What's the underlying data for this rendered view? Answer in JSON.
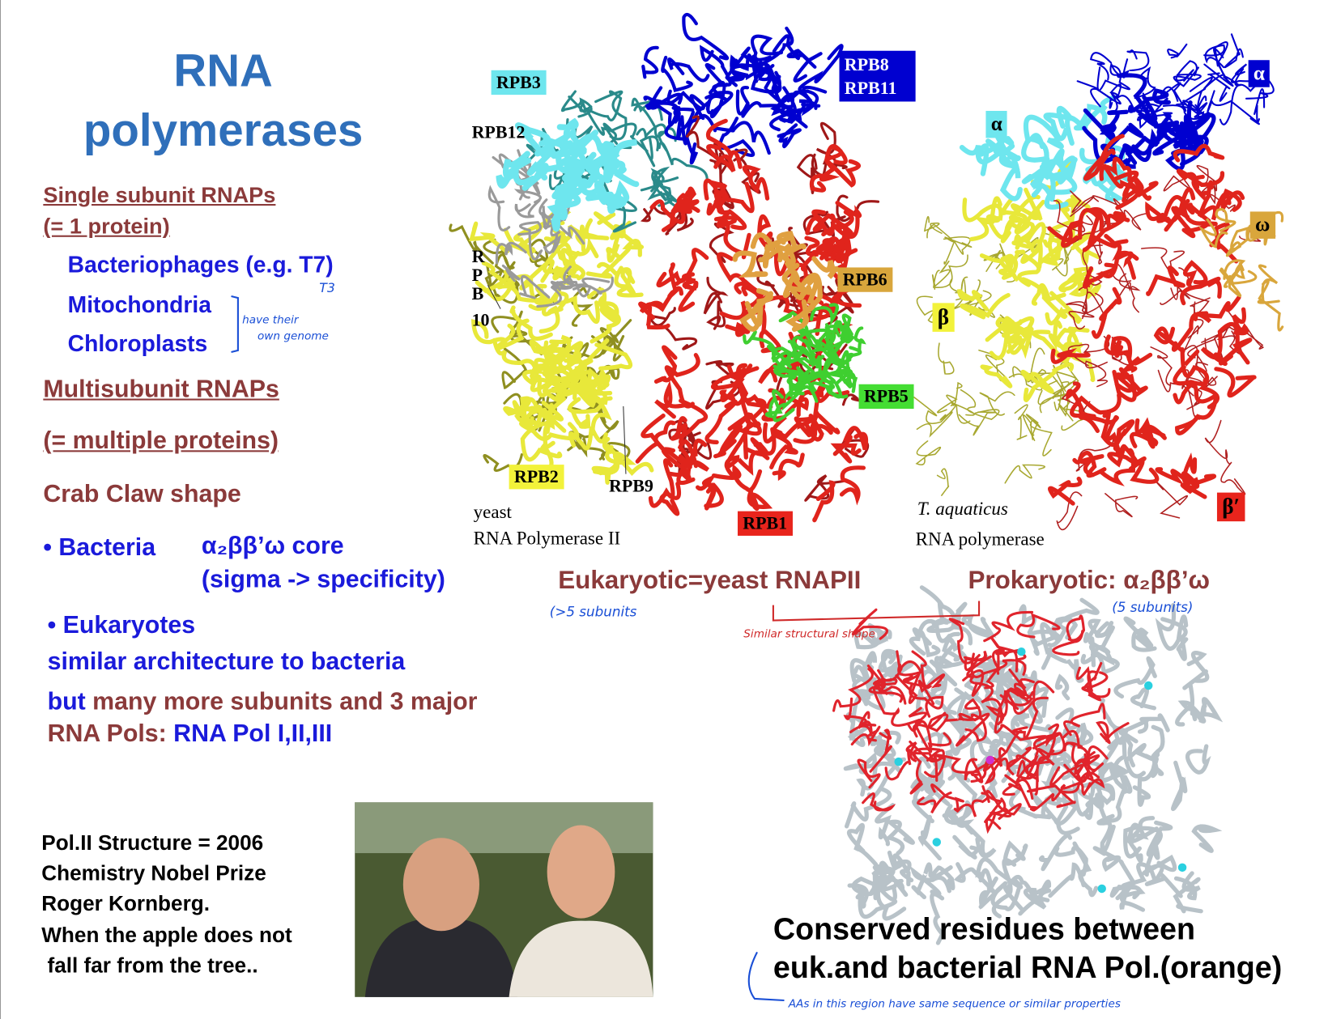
{
  "title": [
    "RNA",
    "polymerases"
  ],
  "left": {
    "single_heading": [
      "Single subunit RNAPs",
      "(= 1 protein)"
    ],
    "single_items": [
      "Bacteriophages (e.g. T7)",
      "Mitochondria",
      "Chloroplasts"
    ],
    "multi_heading": [
      "Multisubunit RNAPs",
      "(= multiple proteins)"
    ],
    "shape": "Crab Claw shape",
    "bacteria": {
      "bullet": "• Bacteria",
      "core": "α₂ββ’ω core",
      "note": "(sigma -> specificity)"
    },
    "eukaryotes": {
      "bullet": "• Eukaryotes",
      "line1": "similar architecture to bacteria",
      "line2": [
        "but",
        " many more subunits and 3 major"
      ],
      "line3": [
        "RNA Pols:",
        " RNA Pol I,II,III"
      ]
    }
  },
  "handwritten": {
    "t3": "T3",
    "genome": [
      "have their",
      "own genome"
    ],
    "euk_subunits": "(>5 subunits",
    "pro_subunits": "(5 subunits)",
    "similar": "Similar structural shape",
    "aas": "AAs in this region have same sequence or similar properties"
  },
  "yeast_figure": {
    "labels": {
      "rpb3": "RPB3",
      "rpb8": "RPB8",
      "rpb11": "RPB11",
      "rpb12": "RPB12",
      "rpb10": [
        "R",
        "P",
        "B",
        "10"
      ],
      "rpb6": "RPB6",
      "rpb5": "RPB5",
      "rpb2": "RPB2",
      "rpb9": "RPB9",
      "rpb1": "RPB1"
    },
    "caption": [
      "yeast",
      "RNA Polymerase II"
    ]
  },
  "taq_figure": {
    "labels": {
      "alpha1": "α",
      "alpha2": "α",
      "omega": "ω",
      "beta": "β",
      "beta_prime": "β′"
    },
    "caption": [
      "T. aquaticus",
      "RNA polymerase"
    ]
  },
  "captions": {
    "eukaryotic": "Eukaryotic=yeast RNAPII",
    "prokaryotic": "Prokaryotic: α₂ββ’ω"
  },
  "nobel": [
    "Pol.II Structure = 2006",
    "Chemistry Nobel Prize",
    "Roger Kornberg.",
    "When the apple does not",
    " fall far from the tree.."
  ],
  "conserved": [
    "Conserved residues between",
    "euk.and bacterial RNA Pol.(orange)"
  ]
}
